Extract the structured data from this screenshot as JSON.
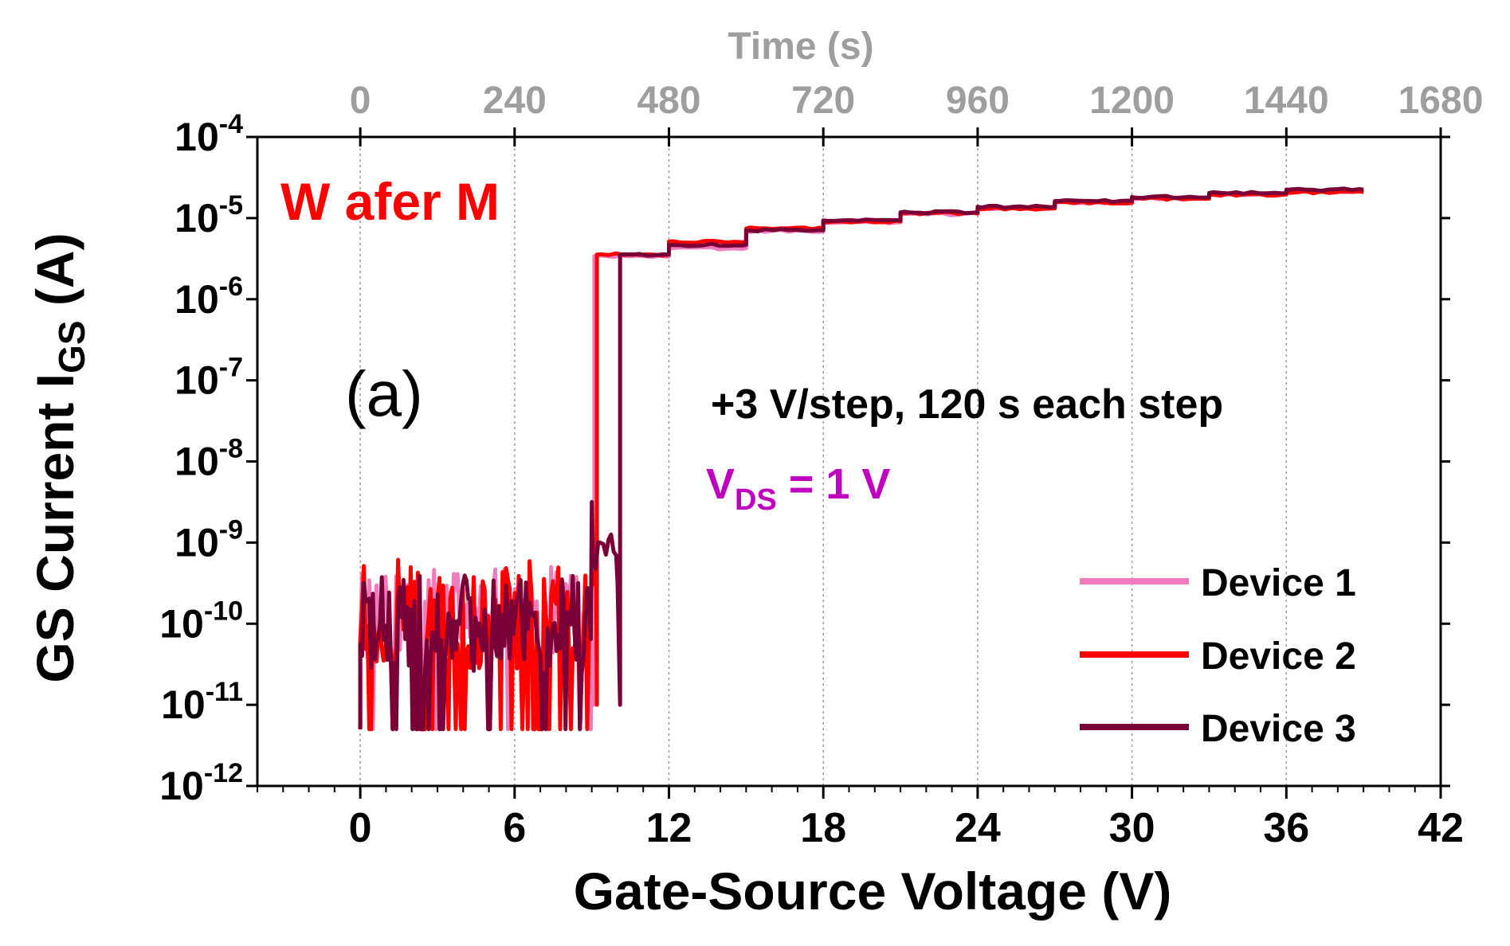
{
  "chart_data": {
    "type": "line",
    "x_axis": {
      "label": "Gate-Source Voltage (V)",
      "range": [
        -4,
        42
      ],
      "ticks": [
        "0",
        "6",
        "12",
        "18",
        "24",
        "30",
        "36",
        "42"
      ],
      "tick_values": [
        0,
        6,
        12,
        18,
        24,
        30,
        36,
        42
      ],
      "minor_step": 1
    },
    "x2_axis": {
      "label": "Time (s)",
      "scale_note": "time = 40 * voltage",
      "ticks": [
        "0",
        "240",
        "480",
        "720",
        "960",
        "1200",
        "1440",
        "1680"
      ],
      "tick_values": [
        0,
        240,
        480,
        720,
        960,
        1200,
        1440,
        1680
      ]
    },
    "y_axis": {
      "label_main": "GS Current I",
      "label_sub": "GS",
      "label_end": " (A)",
      "scale": "log",
      "range_exp": [
        -12,
        -4
      ],
      "ticks": [
        {
          "base": "10",
          "exp": "-4"
        },
        {
          "base": "10",
          "exp": "-5"
        },
        {
          "base": "10",
          "exp": "-6"
        },
        {
          "base": "10",
          "exp": "-7"
        },
        {
          "base": "10",
          "exp": "-8"
        },
        {
          "base": "10",
          "exp": "-9"
        },
        {
          "base": "10",
          "exp": "-10"
        },
        {
          "base": "10",
          "exp": "-11"
        },
        {
          "base": "10",
          "exp": "-12"
        }
      ],
      "tick_exps": [
        -4,
        -5,
        -6,
        -7,
        -8,
        -9,
        -10,
        -11,
        -12
      ]
    },
    "grid": "vertical dotted at major x ticks",
    "legend_position": "bottom-right",
    "annotations": {
      "wafer": "W afer M",
      "panel": "(a)",
      "step_info": "+3 V/step, 120 s each step",
      "vds_main": "V",
      "vds_sub": "DS",
      "vds_value": " = 1 V"
    },
    "series": [
      {
        "name": "Device 1",
        "color": "#f07cbd",
        "breakdown_v": 9.1,
        "pre_band_log": [
          -11.1,
          -9.3
        ],
        "steps": [
          {
            "v0": 9.1,
            "v1": 12.0,
            "log": -5.47
          },
          {
            "v0": 12.0,
            "v1": 15.0,
            "log": -5.37
          },
          {
            "v0": 15.0,
            "v1": 18.0,
            "log": -5.16
          },
          {
            "v0": 18.0,
            "v1": 21.0,
            "log": -5.05
          },
          {
            "v0": 21.0,
            "v1": 24.0,
            "log": -4.95
          },
          {
            "v0": 24.0,
            "v1": 27.0,
            "log": -4.88
          },
          {
            "v0": 27.0,
            "v1": 30.0,
            "log": -4.81
          },
          {
            "v0": 30.0,
            "v1": 33.0,
            "log": -4.76
          },
          {
            "v0": 33.0,
            "v1": 36.0,
            "log": -4.71
          },
          {
            "v0": 36.0,
            "v1": 39.0,
            "log": -4.67
          }
        ]
      },
      {
        "name": "Device 2",
        "color": "#ff0000",
        "breakdown_v": 9.2,
        "pre_band_log": [
          -11.3,
          -9.2
        ],
        "steps": [
          {
            "v0": 9.2,
            "v1": 12.0,
            "log": -5.45
          },
          {
            "v0": 12.0,
            "v1": 15.0,
            "log": -5.29
          },
          {
            "v0": 15.0,
            "v1": 18.0,
            "log": -5.13
          },
          {
            "v0": 18.0,
            "v1": 21.0,
            "log": -5.04
          },
          {
            "v0": 21.0,
            "v1": 24.0,
            "log": -4.94
          },
          {
            "v0": 24.0,
            "v1": 27.0,
            "log": -4.88
          },
          {
            "v0": 27.0,
            "v1": 30.0,
            "log": -4.81
          },
          {
            "v0": 30.0,
            "v1": 33.0,
            "log": -4.76
          },
          {
            "v0": 33.0,
            "v1": 36.0,
            "log": -4.71
          },
          {
            "v0": 36.0,
            "v1": 39.0,
            "log": -4.68
          }
        ]
      },
      {
        "name": "Device 3",
        "color": "#7a0038",
        "breakdown_v": 10.1,
        "pre_band_log": [
          -11.3,
          -9.4
        ],
        "intermediate": {
          "v0": 9.0,
          "v1": 10.0,
          "log": -9.1
        },
        "steps": [
          {
            "v0": 10.1,
            "v1": 12.0,
            "log": -5.45
          },
          {
            "v0": 12.0,
            "v1": 15.0,
            "log": -5.33
          },
          {
            "v0": 15.0,
            "v1": 18.0,
            "log": -5.15
          },
          {
            "v0": 18.0,
            "v1": 21.0,
            "log": -5.03
          },
          {
            "v0": 21.0,
            "v1": 24.0,
            "log": -4.93
          },
          {
            "v0": 24.0,
            "v1": 27.0,
            "log": -4.86
          },
          {
            "v0": 27.0,
            "v1": 30.0,
            "log": -4.79
          },
          {
            "v0": 30.0,
            "v1": 33.0,
            "log": -4.74
          },
          {
            "v0": 33.0,
            "v1": 36.0,
            "log": -4.69
          },
          {
            "v0": 36.0,
            "v1": 39.0,
            "log": -4.65
          }
        ]
      }
    ]
  }
}
